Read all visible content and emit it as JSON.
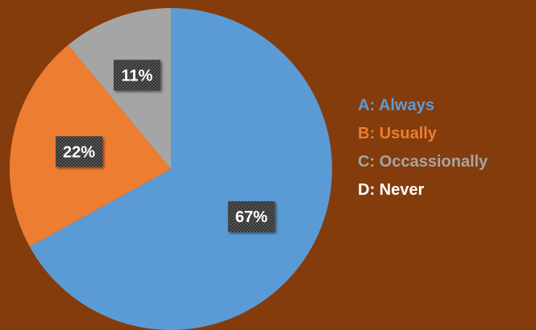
{
  "chart_data": {
    "type": "pie",
    "categories": [
      "A:  Always",
      "B:  Usually",
      "C:  Occassionally",
      "D:  Never"
    ],
    "values": [
      67,
      22,
      11,
      0
    ],
    "data_labels": [
      "67%",
      "22%",
      "11%",
      ""
    ],
    "colors": [
      "#5B9BD5",
      "#ED7D31",
      "#A5A5A5",
      "#FFFFFF"
    ],
    "legend_placement": "right",
    "start_angle": "top, clockwise",
    "title": "",
    "grid": false
  }
}
